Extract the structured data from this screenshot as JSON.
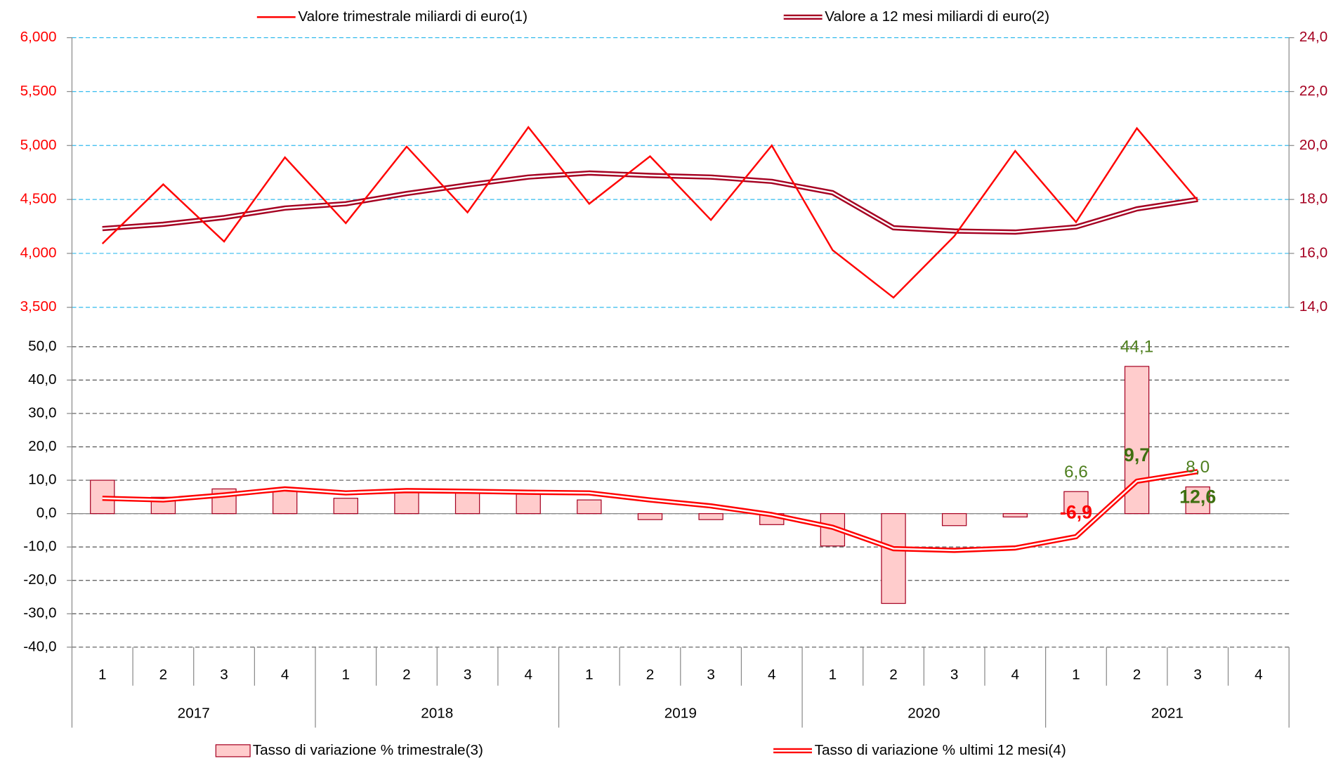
{
  "chart_data": [
    {
      "type": "line",
      "series": [
        {
          "name": "Valore trimestrale miliardi di euro(1)",
          "color": "#ff0000",
          "axis": "y",
          "values": [
            4090,
            4640,
            4110,
            4890,
            4280,
            4990,
            4380,
            5170,
            4460,
            4900,
            4310,
            5000,
            4030,
            3590,
            4160,
            4950,
            4290,
            5160,
            4490,
            null
          ]
        },
        {
          "name": "Valore a 12 mesi miliardi di euro(2)",
          "color": "#a50021",
          "axis": "y2",
          "values": [
            16.92,
            17.08,
            17.33,
            17.68,
            17.84,
            18.22,
            18.54,
            18.83,
            18.98,
            18.89,
            18.83,
            18.67,
            18.25,
            16.95,
            16.83,
            16.79,
            16.98,
            17.65,
            18.0,
            null
          ]
        }
      ],
      "ylim": [
        3500,
        6000
      ],
      "yticks": [
        {
          "value": 3500,
          "label": "3,500"
        },
        {
          "value": 4000,
          "label": "4,000"
        },
        {
          "value": 4500,
          "label": "4,500"
        },
        {
          "value": 5000,
          "label": "5,000"
        },
        {
          "value": 5500,
          "label": "5,500"
        },
        {
          "value": 6000,
          "label": "6,000"
        }
      ],
      "y2lim": [
        14,
        24
      ],
      "y2ticks": [
        {
          "value": 14,
          "label": "14,0"
        },
        {
          "value": 16,
          "label": "16,0"
        },
        {
          "value": 18,
          "label": "18,0"
        },
        {
          "value": 20,
          "label": "20,0"
        },
        {
          "value": 22,
          "label": "22,0"
        },
        {
          "value": 24,
          "label": "24,0"
        }
      ],
      "ytick_color": "#ff0000",
      "y2tick_color": "#a50021",
      "grid": true,
      "grid_color": "#33bbee"
    },
    {
      "type": "bar+line",
      "categories": [
        "1",
        "2",
        "3",
        "4",
        "1",
        "2",
        "3",
        "4",
        "1",
        "2",
        "3",
        "4",
        "1",
        "2",
        "3",
        "4",
        "1",
        "2",
        "3",
        "4"
      ],
      "years": [
        "2017",
        "2018",
        "2019",
        "2020",
        "2021"
      ],
      "series": [
        {
          "name": "Tasso di variazione % trimestrale(3)",
          "type": "bar",
          "color": "#ffcccc",
          "edge": "#a50021",
          "values": [
            10.0,
            4.9,
            7.4,
            7.4,
            4.6,
            7.4,
            6.9,
            5.9,
            4.1,
            -1.8,
            -1.8,
            -3.3,
            -9.7,
            -26.9,
            -3.6,
            -1.0,
            6.6,
            44.1,
            8.0,
            null
          ],
          "value_labels": [
            null,
            null,
            null,
            null,
            null,
            null,
            null,
            null,
            null,
            null,
            null,
            null,
            null,
            null,
            null,
            null,
            "6,6",
            "44,1",
            "8,0",
            null
          ],
          "value_label_colors": [
            null,
            null,
            null,
            null,
            null,
            null,
            null,
            null,
            null,
            null,
            null,
            null,
            null,
            null,
            null,
            null,
            "#4f7f1f",
            "#4f7f1f",
            "#4f7f1f",
            null
          ]
        },
        {
          "name": "Tasso di variazione % ultimi 12 mesi(4)",
          "type": "line",
          "color": "#ff0000",
          "values": [
            4.6,
            4.1,
            5.6,
            7.4,
            6.2,
            6.9,
            6.7,
            6.4,
            6.2,
            4.1,
            2.3,
            -0.3,
            -4.1,
            -10.5,
            -11.0,
            -10.3,
            -6.9,
            9.7,
            12.6,
            null
          ],
          "value_labels": [
            null,
            null,
            null,
            null,
            null,
            null,
            null,
            null,
            null,
            null,
            null,
            null,
            null,
            null,
            null,
            null,
            "-6,9",
            "9,7",
            "12,6",
            null
          ],
          "value_label_colors": [
            null,
            null,
            null,
            null,
            null,
            null,
            null,
            null,
            null,
            null,
            null,
            null,
            null,
            null,
            null,
            null,
            "#ff0000",
            "#3f6f10",
            "#3f6f10",
            null
          ]
        }
      ],
      "ylim": [
        -40,
        50
      ],
      "yticks": [
        {
          "value": -40,
          "label": "-40,0"
        },
        {
          "value": -30,
          "label": "-30,0"
        },
        {
          "value": -20,
          "label": "-20,0"
        },
        {
          "value": -10,
          "label": "-10,0"
        },
        {
          "value": 0,
          "label": "0,0"
        },
        {
          "value": 10,
          "label": "10,0"
        },
        {
          "value": 20,
          "label": "20,0"
        },
        {
          "value": 30,
          "label": "30,0"
        },
        {
          "value": 40,
          "label": "40,0"
        },
        {
          "value": 50,
          "label": "50,0"
        }
      ],
      "grid": true,
      "grid_color": "#555555"
    }
  ]
}
